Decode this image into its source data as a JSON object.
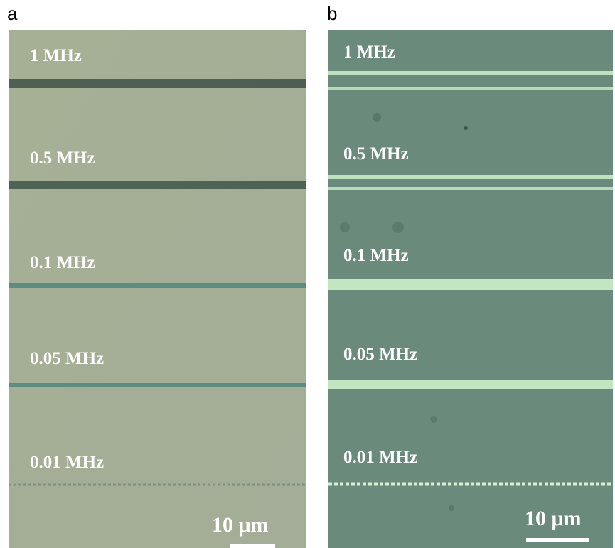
{
  "panels": [
    {
      "label": "a",
      "frequencies": [
        "1 MHz",
        "0.5 MHz",
        "0.1 MHz",
        "0.05 MHz",
        "0.01 MHz"
      ],
      "scale_bar": "10 μm"
    },
    {
      "label": "b",
      "frequencies": [
        "1 MHz",
        "0.5 MHz",
        "0.1 MHz",
        "0.05 MHz",
        "0.01 MHz"
      ],
      "scale_bar": "10 μm"
    }
  ]
}
